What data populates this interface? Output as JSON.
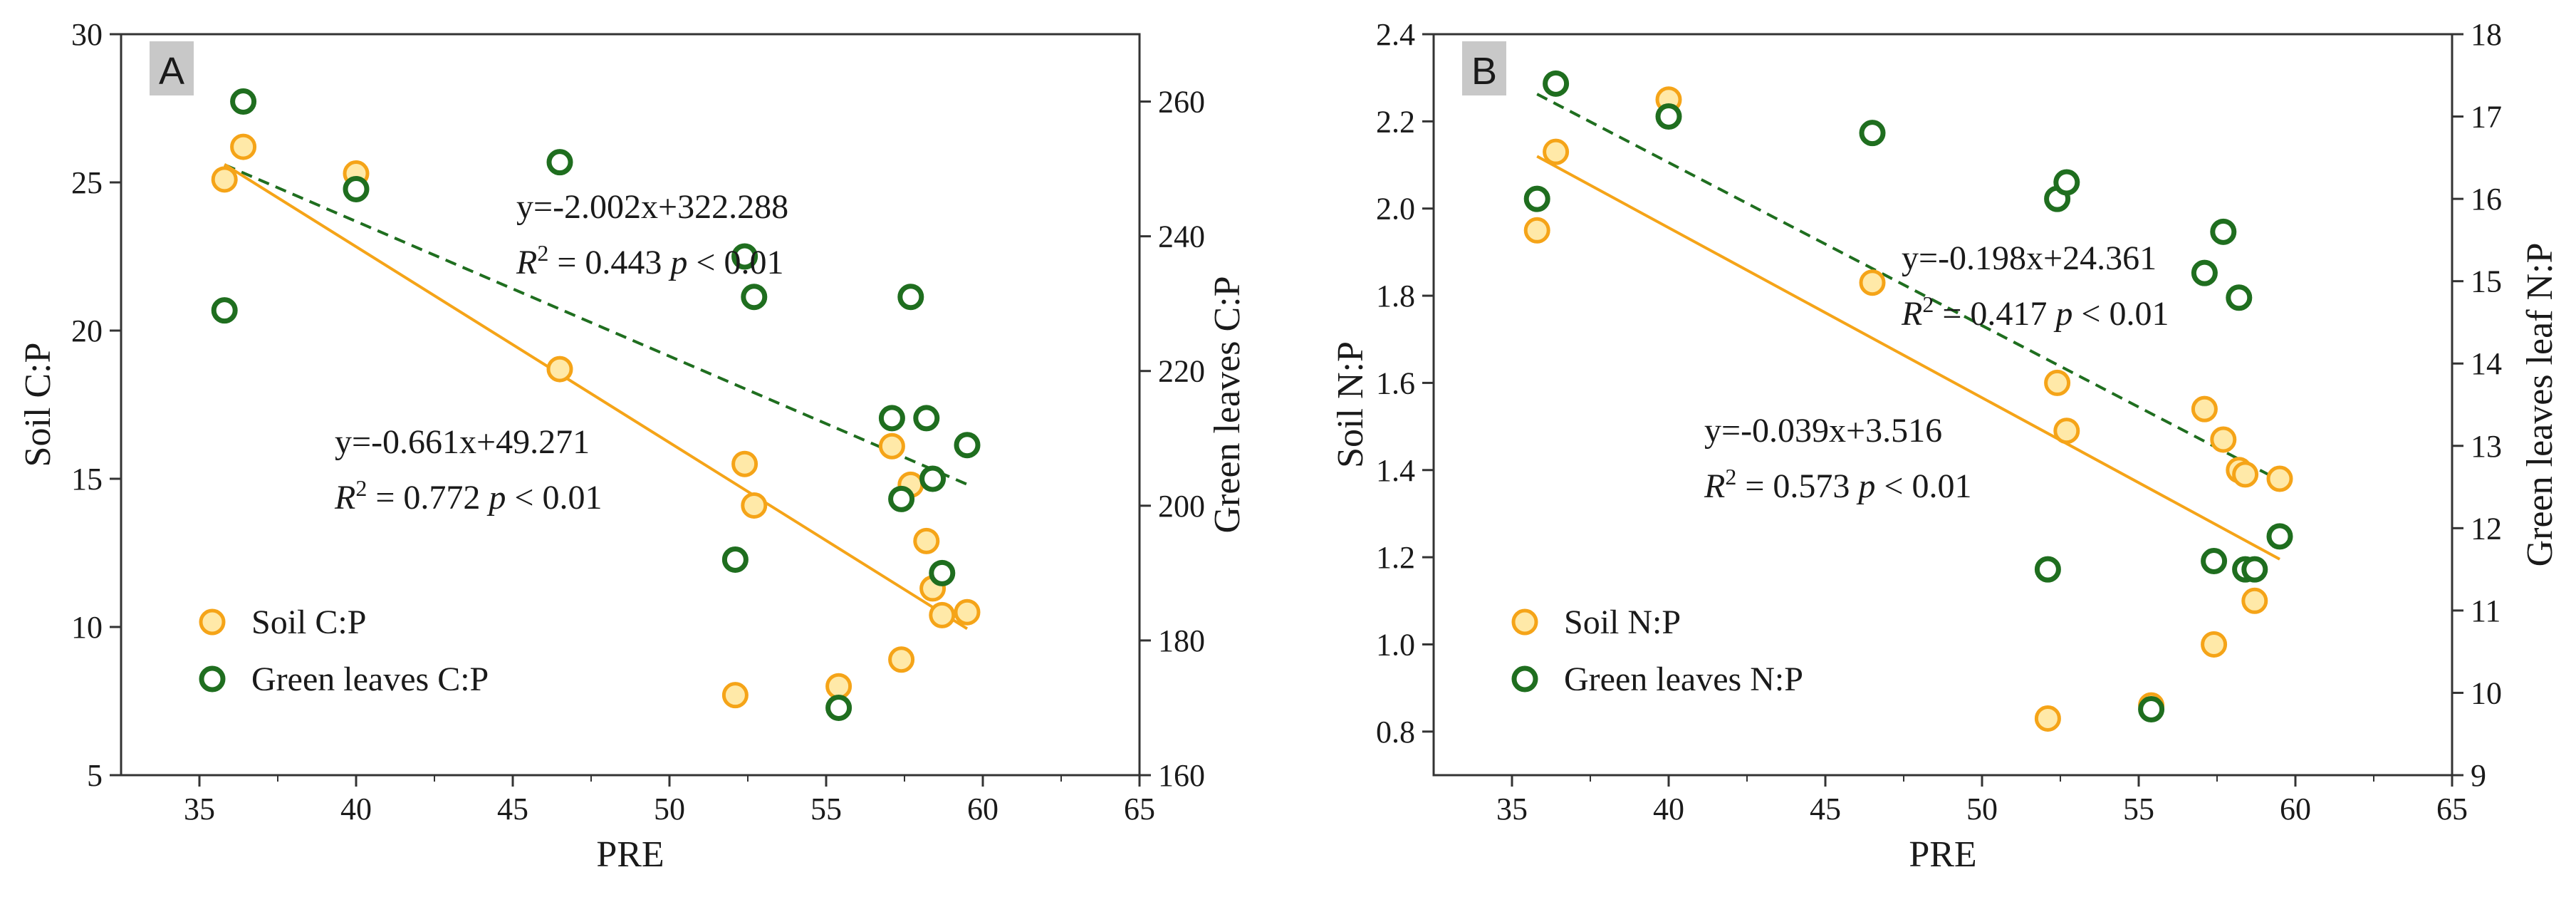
{
  "colors": {
    "soil_edge": "#F5A418",
    "soil_fill": "#FFE9A8",
    "leaf_edge": "#1F6E1F",
    "soil_line": "#F5A418",
    "leaf_line": "#1F6E1F",
    "axis": "#333333",
    "label_box": "#C8C8C8"
  },
  "chart_data": [
    {
      "type": "scatter",
      "panel_label": "A",
      "xlabel": "PRE",
      "ylabel_left": "Soil C:P",
      "ylabel_right": "Green leaves C:P",
      "xlim": [
        32.5,
        65
      ],
      "xticks": [
        35,
        40,
        45,
        50,
        55,
        60,
        65
      ],
      "ylim_left": [
        5,
        30
      ],
      "yticks_left": [
        5,
        10,
        15,
        20,
        25,
        30
      ],
      "ylim_right": [
        160,
        270
      ],
      "yticks_right": [
        160,
        180,
        200,
        220,
        240,
        260
      ],
      "series": [
        {
          "name": "Soil C:P",
          "axis": "left",
          "style": "soil",
          "points": [
            [
              35.8,
              25.1
            ],
            [
              36.4,
              26.2
            ],
            [
              40.0,
              25.3
            ],
            [
              46.5,
              18.7
            ],
            [
              52.1,
              7.7
            ],
            [
              52.4,
              15.5
            ],
            [
              52.7,
              14.1
            ],
            [
              55.4,
              8.0
            ],
            [
              57.1,
              16.1
            ],
            [
              57.4,
              8.9
            ],
            [
              57.7,
              14.8
            ],
            [
              58.2,
              12.9
            ],
            [
              58.4,
              11.3
            ],
            [
              58.7,
              10.4
            ],
            [
              59.5,
              10.5
            ]
          ]
        },
        {
          "name": "Green leaves C:P",
          "axis": "right",
          "style": "leaf",
          "points": [
            [
              35.8,
              229
            ],
            [
              36.4,
              260
            ],
            [
              40.0,
              247
            ],
            [
              46.5,
              251
            ],
            [
              52.1,
              192
            ],
            [
              52.4,
              237
            ],
            [
              52.7,
              231
            ],
            [
              55.4,
              170
            ],
            [
              57.1,
              213
            ],
            [
              57.4,
              201
            ],
            [
              57.7,
              231
            ],
            [
              58.2,
              213
            ],
            [
              58.4,
              204
            ],
            [
              58.7,
              190
            ],
            [
              59.5,
              209
            ]
          ]
        }
      ],
      "fits": [
        {
          "name": "Green leaves C:P fit",
          "axis": "right",
          "style": "dashed",
          "equation": "y=-2.002x+322.288",
          "r2": "0.443",
          "p_text": "< 0.01",
          "slope": -2.002,
          "intercept": 322.288,
          "x_range": [
            35.8,
            59.5
          ]
        },
        {
          "name": "Soil C:P fit",
          "axis": "left",
          "style": "solid",
          "equation": "y=-0.661x+49.271",
          "r2": "0.772",
          "p_text": "< 0.01",
          "slope": -0.661,
          "intercept": 49.271,
          "x_range": [
            35.8,
            59.5
          ]
        }
      ],
      "legend": {
        "position": "bottom-left",
        "items": [
          "Soil C:P",
          "Green leaves C:P"
        ]
      }
    },
    {
      "type": "scatter",
      "panel_label": "B",
      "xlabel": "PRE",
      "ylabel_left": "Soil N:P",
      "ylabel_right": "Green leaves leaf N:P",
      "xlim": [
        32.5,
        65
      ],
      "xticks": [
        35,
        40,
        45,
        50,
        55,
        60,
        65
      ],
      "ylim_left": [
        0.7,
        2.4
      ],
      "yticks_left": [
        0.8,
        1.0,
        1.2,
        1.4,
        1.6,
        1.8,
        2.0,
        2.2,
        2.4
      ],
      "ylim_right": [
        9,
        18
      ],
      "yticks_right": [
        9,
        10,
        11,
        12,
        13,
        14,
        15,
        16,
        17,
        18
      ],
      "series": [
        {
          "name": "Soil N:P",
          "axis": "left",
          "style": "soil",
          "points": [
            [
              35.8,
              1.95
            ],
            [
              36.4,
              2.13
            ],
            [
              40.0,
              2.25
            ],
            [
              46.5,
              1.83
            ],
            [
              52.1,
              0.83
            ],
            [
              52.4,
              1.6
            ],
            [
              52.7,
              1.49
            ],
            [
              55.4,
              0.86
            ],
            [
              57.1,
              1.54
            ],
            [
              57.4,
              1.0
            ],
            [
              57.7,
              1.47
            ],
            [
              58.2,
              1.4
            ],
            [
              58.4,
              1.39
            ],
            [
              58.7,
              1.1
            ],
            [
              59.5,
              1.38
            ]
          ]
        },
        {
          "name": "Green leaves N:P",
          "axis": "right",
          "style": "leaf",
          "points": [
            [
              35.8,
              16.0
            ],
            [
              36.4,
              17.4
            ],
            [
              40.0,
              17.0
            ],
            [
              46.5,
              16.8
            ],
            [
              52.1,
              11.5
            ],
            [
              52.4,
              16.0
            ],
            [
              52.7,
              16.2
            ],
            [
              55.4,
              9.8
            ],
            [
              57.1,
              15.1
            ],
            [
              57.4,
              11.6
            ],
            [
              57.7,
              15.6
            ],
            [
              58.2,
              14.8
            ],
            [
              58.4,
              11.5
            ],
            [
              58.7,
              11.5
            ],
            [
              59.5,
              11.9
            ]
          ]
        }
      ],
      "fits": [
        {
          "name": "Green leaves N:P fit",
          "axis": "right",
          "style": "dashed",
          "equation": "y=-0.198x+24.361",
          "r2": "0.417",
          "p_text": "< 0.01",
          "slope": -0.198,
          "intercept": 24.361,
          "x_range": [
            35.8,
            59.5
          ]
        },
        {
          "name": "Soil N:P fit",
          "axis": "left",
          "style": "solid",
          "equation": "y=-0.039x+3.516",
          "r2": "0.573",
          "p_text": "< 0.01",
          "slope": -0.039,
          "intercept": 3.516,
          "x_range": [
            35.8,
            59.5
          ]
        }
      ],
      "legend": {
        "position": "bottom-left",
        "items": [
          "Soil N:P",
          "Green leaves  N:P"
        ]
      }
    }
  ]
}
